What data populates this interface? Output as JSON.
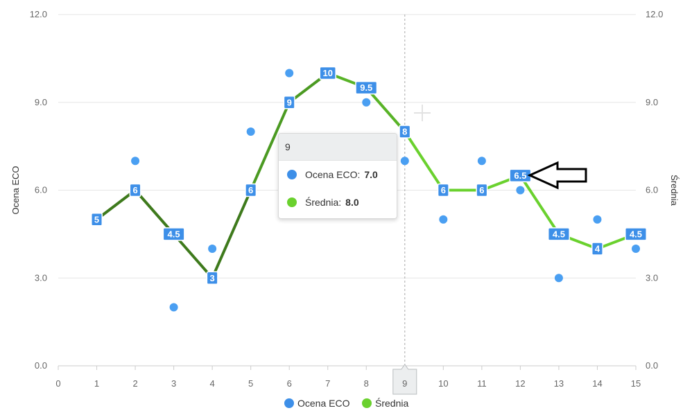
{
  "chart_data": {
    "type": "line",
    "x": [
      1,
      2,
      3,
      4,
      5,
      6,
      7,
      8,
      9,
      10,
      11,
      12,
      13,
      14,
      15
    ],
    "xlim": [
      0,
      15
    ],
    "xticks": [
      "0",
      "1",
      "2",
      "3",
      "4",
      "5",
      "6",
      "7",
      "8",
      "9",
      "10",
      "11",
      "12",
      "13",
      "14",
      "15"
    ],
    "ylim": [
      0,
      12
    ],
    "yticks_left": [
      "0.0",
      "3.0",
      "6.0",
      "9.0",
      "12.0"
    ],
    "yticks_right": [
      "0.0",
      "3.0",
      "6.0",
      "9.0",
      "12.0"
    ],
    "ylabel_left": "Ocena ECO",
    "ylabel_right": "Średnia",
    "grid": "horizontal",
    "legend_position": "bottom-center",
    "series": [
      {
        "name": "Ocena ECO",
        "kind": "scatter",
        "color": "#4a9ff2",
        "values": [
          5,
          7,
          2,
          4,
          8,
          10,
          10,
          9,
          7,
          5,
          7,
          6,
          3,
          5,
          4
        ]
      },
      {
        "name": "Średnia",
        "kind": "line",
        "color": "#6ad12e",
        "values": [
          5,
          6,
          4.5,
          3,
          6,
          9,
          10,
          9.5,
          8,
          6,
          6,
          6.5,
          4.5,
          4,
          4.5
        ],
        "labels": [
          "5",
          "6",
          "4.5",
          "3",
          "6",
          "9",
          "10",
          "9.5",
          "8",
          "6",
          "6",
          "6.5",
          "4.5",
          "4",
          "4.5"
        ],
        "segment_colors": [
          "#3e7a1c",
          "#3e7a1c",
          "#3e7a1c",
          "#3e7a1c",
          "#4b9a22",
          "#4b9a22",
          "#58b327",
          "#58b327",
          "#6ad12e",
          "#6ad12e",
          "#6ad12e",
          "#6ad12e",
          "#6ad12e",
          "#6ad12e"
        ]
      }
    ],
    "label_color": "#3d8fe8",
    "crosshair_x": 9,
    "crosshair_label": "9",
    "tooltip": {
      "title": "9",
      "rows": [
        {
          "name": "Ocena ECO:",
          "value": "7.0",
          "color": "#3d8fe8"
        },
        {
          "name": "Średnia:",
          "value": "8.0",
          "color": "#6ad12e"
        }
      ]
    }
  },
  "legend": {
    "items": [
      {
        "label": "Ocena ECO",
        "color": "#3d8fe8"
      },
      {
        "label": "Średnia",
        "color": "#6ad12e"
      }
    ]
  }
}
